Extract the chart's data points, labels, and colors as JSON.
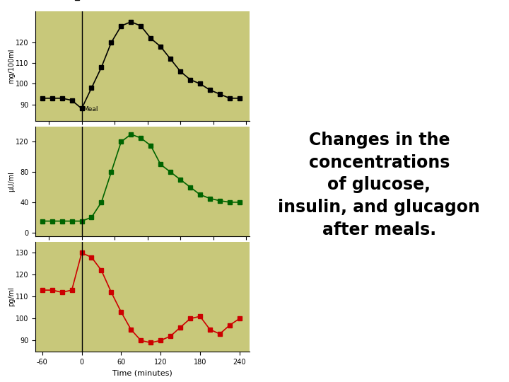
{
  "bg_color": "#ffffff",
  "plot_bg": "#c8c87a",
  "glucose": {
    "x": [
      -60,
      -45,
      -30,
      -15,
      0,
      15,
      30,
      45,
      60,
      75,
      90,
      105,
      120,
      135,
      150,
      165,
      180,
      195,
      210,
      225,
      240
    ],
    "y": [
      93,
      93,
      93,
      92,
      88,
      98,
      108,
      120,
      128,
      130,
      128,
      122,
      118,
      112,
      106,
      102,
      100,
      97,
      95,
      93,
      93
    ],
    "color": "#000000",
    "marker": "s",
    "label": "Glucose",
    "ylabel": "mg/100ml",
    "ylim": [
      82,
      135
    ],
    "yticks": [
      90,
      100,
      110,
      120
    ]
  },
  "insulin": {
    "x": [
      -60,
      -45,
      -30,
      -15,
      0,
      15,
      30,
      45,
      60,
      75,
      90,
      105,
      120,
      135,
      150,
      165,
      180,
      195,
      210,
      225,
      240
    ],
    "y": [
      15,
      15,
      15,
      15,
      15,
      20,
      40,
      80,
      120,
      130,
      125,
      115,
      90,
      80,
      70,
      60,
      50,
      45,
      42,
      40,
      40
    ],
    "color": "#006400",
    "marker": "s",
    "label": "Insulin",
    "ylabel": "μU/ml",
    "ylim": [
      -5,
      140
    ],
    "yticks": [
      0,
      40,
      80,
      120
    ]
  },
  "glucagon": {
    "x": [
      -60,
      -45,
      -30,
      -15,
      0,
      15,
      30,
      45,
      60,
      75,
      90,
      105,
      120,
      135,
      150,
      165,
      180,
      195,
      210,
      225,
      240
    ],
    "y": [
      113,
      113,
      112,
      113,
      130,
      128,
      122,
      112,
      103,
      95,
      90,
      89,
      90,
      92,
      96,
      100,
      101,
      95,
      93,
      97,
      100
    ],
    "color": "#cc0000",
    "marker": "s",
    "label": "Glucagon",
    "ylabel": "pg/ml",
    "ylim": [
      85,
      135
    ],
    "yticks": [
      90,
      100,
      110,
      120,
      130
    ]
  },
  "xlabel": "Time (minutes)",
  "xticks": [
    -60,
    0,
    60,
    120,
    180,
    240
  ],
  "xlim": [
    -70,
    255
  ],
  "meal_x": 0,
  "meal_label": "Meal",
  "annotation_text": "Changes in the\nconcentrations\nof glucose,\ninsulin, and glucagon\nafter meals.",
  "annotation_fontsize": 17
}
